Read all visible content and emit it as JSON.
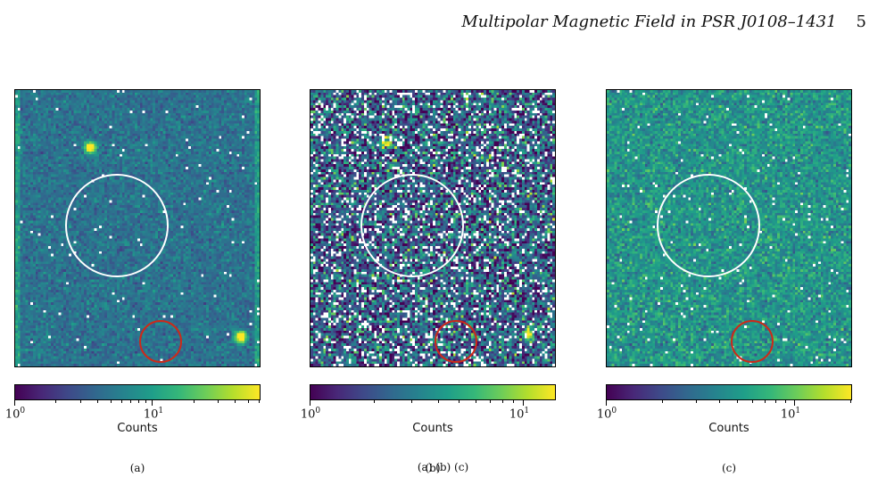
{
  "header": {
    "title": "Multipolar Magnetic Field in PSR J0108–1431",
    "page": "5"
  },
  "colormap": "viridis",
  "circle_colors": {
    "source": "#ffffff",
    "background": "#cc2a1a"
  },
  "chart_data": [
    {
      "type": "heatmap",
      "panel": "(a)",
      "colorbar_label": "Counts",
      "colorbar_scale": "log",
      "colorbar_range": [
        1,
        60
      ],
      "major_ticks": [
        {
          "base": "10",
          "exp": "0"
        },
        {
          "base": "10",
          "exp": "1"
        }
      ]
    },
    {
      "type": "heatmap",
      "panel": "(b)",
      "colorbar_label": "Counts",
      "colorbar_scale": "log",
      "colorbar_range": [
        1,
        14
      ],
      "major_ticks": [
        {
          "base": "10",
          "exp": "0"
        },
        {
          "base": "10",
          "exp": "1"
        }
      ]
    },
    {
      "type": "heatmap",
      "panel": "(c)",
      "colorbar_label": "Counts",
      "colorbar_scale": "log",
      "colorbar_range": [
        1,
        20
      ],
      "major_ticks": [
        {
          "base": "10",
          "exp": "0"
        },
        {
          "base": "10",
          "exp": "1"
        }
      ]
    }
  ],
  "caption": "(a) (b) (c)"
}
